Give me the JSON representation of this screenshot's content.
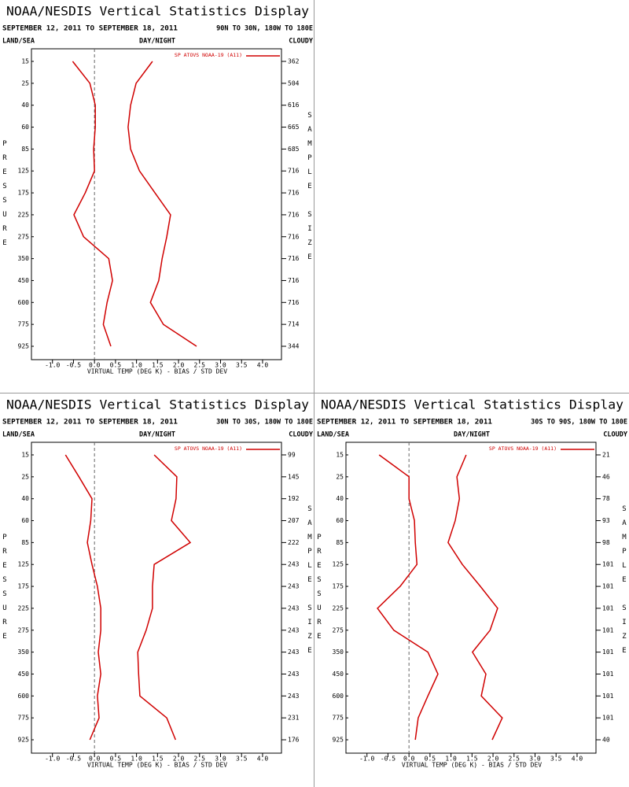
{
  "chart_data": [
    {
      "type": "line",
      "title": "NOAA/NESDIS Vertical Statistics Display",
      "subtitle": "SEPTEMBER 12, 2011 TO SEPTEMBER 18, 2011",
      "region": "90N TO 30N, 180W TO 180E",
      "land_sea": "LAND/SEA",
      "day_night": "DAY/NIGHT",
      "cloudy": "CLOUDY",
      "y_label": "PRESSURE",
      "y2_label": "SAMPLE SIZE",
      "x_label": "VIRTUAL TEMP (DEG K) - BIAS / STD DEV",
      "categories": [
        15,
        25,
        40,
        60,
        85,
        125,
        175,
        225,
        275,
        350,
        450,
        600,
        775,
        925
      ],
      "sample_size": [
        362,
        504,
        616,
        665,
        685,
        716,
        716,
        716,
        716,
        716,
        716,
        716,
        714,
        344
      ],
      "series": [
        {
          "name": "SP ATOVS NOAA-19 (A11)",
          "color": "#d00000",
          "bias": [
            -0.52,
            -0.11,
            0.02,
            0.02,
            -0.02,
            0.0,
            -0.22,
            -0.49,
            -0.26,
            0.34,
            0.43,
            0.3,
            0.21,
            0.39
          ],
          "std_dev": [
            1.38,
            0.99,
            0.86,
            0.8,
            0.86,
            1.07,
            1.44,
            1.81,
            1.72,
            1.61,
            1.53,
            1.33,
            1.64,
            2.43
          ]
        }
      ],
      "xlim": [
        -1.5,
        4.45
      ],
      "xticks": [
        {
          "value": -1,
          "label": "-1.0"
        },
        -0.5,
        {
          "value": 0,
          "label": "0.0"
        },
        0.5,
        {
          "value": 1,
          "label": "1.0"
        },
        1.5,
        {
          "value": 2,
          "label": "2.0"
        },
        2.5,
        {
          "value": 3,
          "label": "3.0"
        },
        3.5,
        {
          "value": 4,
          "label": "4.0"
        }
      ]
    },
    {
      "type": "line",
      "title": "NOAA/NESDIS Vertical Statistics Display",
      "subtitle": "SEPTEMBER 12, 2011 TO SEPTEMBER 18, 2011",
      "region": "30N TO 30S, 180W TO 180E",
      "land_sea": "LAND/SEA",
      "day_night": "DAY/NIGHT",
      "cloudy": "CLOUDY",
      "y_label": "PRESSURE",
      "y2_label": "SAMPLE SIZE",
      "x_label": "VIRTUAL TEMP (DEG K) - BIAS / STD DEV",
      "categories": [
        15,
        25,
        40,
        60,
        85,
        125,
        175,
        225,
        275,
        350,
        450,
        600,
        775,
        925
      ],
      "sample_size": [
        99,
        145,
        192,
        207,
        222,
        243,
        243,
        243,
        243,
        243,
        243,
        243,
        231,
        176
      ],
      "series": [
        {
          "name": "SP ATOVS NOAA-19 (A11)",
          "color": "#d00000",
          "bias": [
            -0.69,
            -0.37,
            -0.06,
            -0.09,
            -0.17,
            -0.06,
            0.07,
            0.15,
            0.15,
            0.09,
            0.15,
            0.07,
            0.11,
            -0.11
          ],
          "std_dev": [
            1.42,
            1.96,
            1.94,
            1.83,
            2.28,
            1.42,
            1.38,
            1.38,
            1.23,
            1.03,
            1.05,
            1.08,
            1.72,
            1.93
          ]
        }
      ],
      "xlim": [
        -1.5,
        4.45
      ],
      "xticks": [
        {
          "value": -1,
          "label": "-1.0"
        },
        -0.5,
        {
          "value": 0,
          "label": "0.0"
        },
        0.5,
        {
          "value": 1,
          "label": "1.0"
        },
        1.5,
        {
          "value": 2,
          "label": "2.0"
        },
        2.5,
        {
          "value": 3,
          "label": "3.0"
        },
        3.5,
        {
          "value": 4,
          "label": "4.0"
        }
      ]
    },
    {
      "type": "line",
      "title": "NOAA/NESDIS Vertical Statistics Display",
      "subtitle": "SEPTEMBER 12, 2011 TO SEPTEMBER 18, 2011",
      "region": "30S TO 90S, 180W TO 180E",
      "land_sea": "LAND/SEA",
      "day_night": "DAY/NIGHT",
      "cloudy": "CLOUDY",
      "y_label": "PRESSURE",
      "y2_label": "SAMPLE SIZE",
      "x_label": "VIRTUAL TEMP (DEG K) - BIAS / STD DEV",
      "categories": [
        15,
        25,
        40,
        60,
        85,
        125,
        175,
        225,
        275,
        350,
        450,
        600,
        775,
        925
      ],
      "sample_size": [
        21,
        46,
        78,
        93,
        98,
        101,
        101,
        101,
        101,
        101,
        101,
        101,
        101,
        40
      ],
      "series": [
        {
          "name": "SP ATOVS NOAA-19 (A11)",
          "color": "#d00000",
          "bias": [
            -0.71,
            0.0,
            0.0,
            0.13,
            0.15,
            0.19,
            -0.21,
            -0.75,
            -0.36,
            0.45,
            0.69,
            0.45,
            0.22,
            0.15
          ],
          "std_dev": [
            1.36,
            1.14,
            1.2,
            1.1,
            0.93,
            1.27,
            1.7,
            2.11,
            1.93,
            1.51,
            1.83,
            1.72,
            2.22,
            1.98
          ]
        }
      ],
      "xlim": [
        -1.5,
        4.45
      ],
      "xticks": [
        {
          "value": -1,
          "label": "-1.0"
        },
        -0.5,
        {
          "value": 0,
          "label": "0.0"
        },
        0.5,
        {
          "value": 1,
          "label": "1.0"
        },
        1.5,
        {
          "value": 2,
          "label": "2.0"
        },
        2.5,
        {
          "value": 3,
          "label": "3.0"
        },
        3.5,
        {
          "value": 4,
          "label": "4.0"
        }
      ]
    }
  ]
}
